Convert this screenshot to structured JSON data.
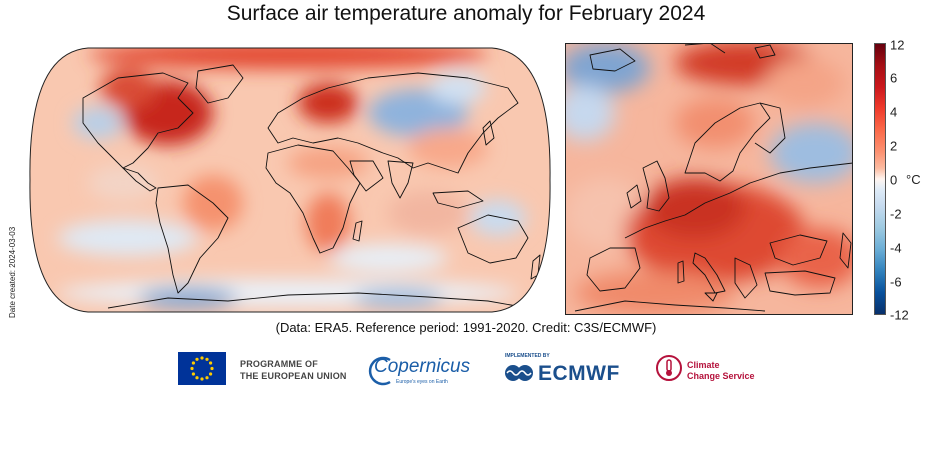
{
  "title": "Surface air temperature anomaly for February 2024",
  "date_created": "Date created: 2024-03-03",
  "credit": "(Data: ERA5.  Reference period: 1991-2020.  Credit: C3S/ECMWF)",
  "colorbar": {
    "unit": "°C",
    "ticks": [
      "12",
      "6",
      "4",
      "2",
      "0",
      "-2",
      "-4",
      "-6",
      "-12"
    ],
    "colors": {
      "max": "#67000d",
      "zero": "#fff5f0",
      "min": "#08306b"
    }
  },
  "maps": {
    "world": {
      "projection": "Robinson-like global",
      "coastline_color": "#111111"
    },
    "europe": {
      "region": "Europe"
    }
  },
  "logos": {
    "eu_line1": "PROGRAMME OF",
    "eu_line2": "THE EUROPEAN UNION",
    "copernicus": "Copernicus",
    "copernicus_tagline": "Europe's eyes on Earth",
    "ecmwf_implemented": "IMPLEMENTED BY",
    "ecmwf": "ECMWF",
    "c3s_line1": "Climate",
    "c3s_line2": "Change Service"
  }
}
